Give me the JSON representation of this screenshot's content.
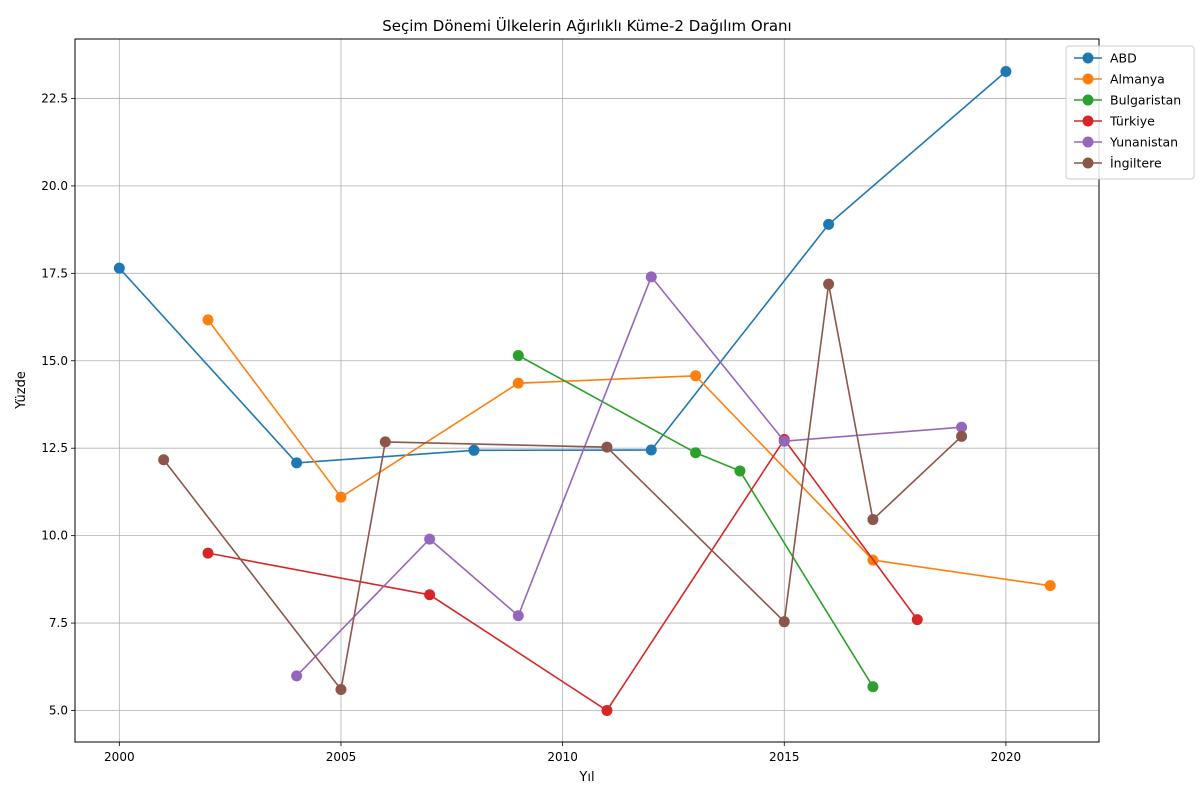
{
  "chart_data": {
    "type": "line",
    "title": "Seçim Dönemi Ülkelerin Ağırlıklı Küme-2 Dağılım Oranı",
    "xlabel": "Yıl",
    "ylabel": "Yüzde",
    "xlim": [
      1999,
      2022.1
    ],
    "ylim": [
      4.1,
      24.2
    ],
    "xticks": [
      2000,
      2005,
      2010,
      2015,
      2020
    ],
    "xtick_labels": [
      "2000",
      "2005",
      "2010",
      "2015",
      "2020"
    ],
    "yticks": [
      5.0,
      7.5,
      10.0,
      12.5,
      15.0,
      17.5,
      20.0,
      22.5
    ],
    "ytick_labels": [
      "5.0",
      "7.5",
      "10.0",
      "12.5",
      "15.0",
      "17.5",
      "20.0",
      "22.5"
    ],
    "grid": true,
    "legend_position": "top-right",
    "series": [
      {
        "name": "ABD",
        "color": "#1f77b4",
        "points": [
          [
            2000,
            17.65
          ],
          [
            2004,
            12.08
          ],
          [
            2008,
            12.44
          ],
          [
            2012,
            12.45
          ],
          [
            2016,
            18.9
          ],
          [
            2020,
            23.27
          ]
        ]
      },
      {
        "name": "Almanya",
        "color": "#ff7f0e",
        "points": [
          [
            2002,
            16.17
          ],
          [
            2005,
            11.1
          ],
          [
            2009,
            14.36
          ],
          [
            2013,
            14.57
          ],
          [
            2017,
            9.3
          ],
          [
            2021,
            8.57
          ]
        ]
      },
      {
        "name": "Bulgaristan",
        "color": "#2ca02c",
        "points": [
          [
            2009,
            15.15
          ],
          [
            2013,
            12.37
          ],
          [
            2014,
            11.85
          ],
          [
            2017,
            5.68
          ]
        ]
      },
      {
        "name": "Türkiye",
        "color": "#d62728",
        "points": [
          [
            2002,
            9.5
          ],
          [
            2007,
            8.31
          ],
          [
            2011,
            5.0
          ],
          [
            2015,
            12.75
          ],
          [
            2018,
            7.6
          ]
        ]
      },
      {
        "name": "Yunanistan",
        "color": "#9467bd",
        "points": [
          [
            2004,
            5.99
          ],
          [
            2007,
            9.9
          ],
          [
            2009,
            7.71
          ],
          [
            2012,
            17.4
          ],
          [
            2015,
            12.7
          ],
          [
            2019,
            13.1
          ]
        ]
      },
      {
        "name": "İngiltere",
        "color": "#8c564b",
        "points": [
          [
            2001,
            12.17
          ],
          [
            2005,
            5.6
          ],
          [
            2006,
            12.68
          ],
          [
            2011,
            12.53
          ],
          [
            2015,
            7.54
          ],
          [
            2016,
            17.19
          ],
          [
            2017,
            10.46
          ],
          [
            2019,
            12.84
          ]
        ]
      }
    ]
  }
}
